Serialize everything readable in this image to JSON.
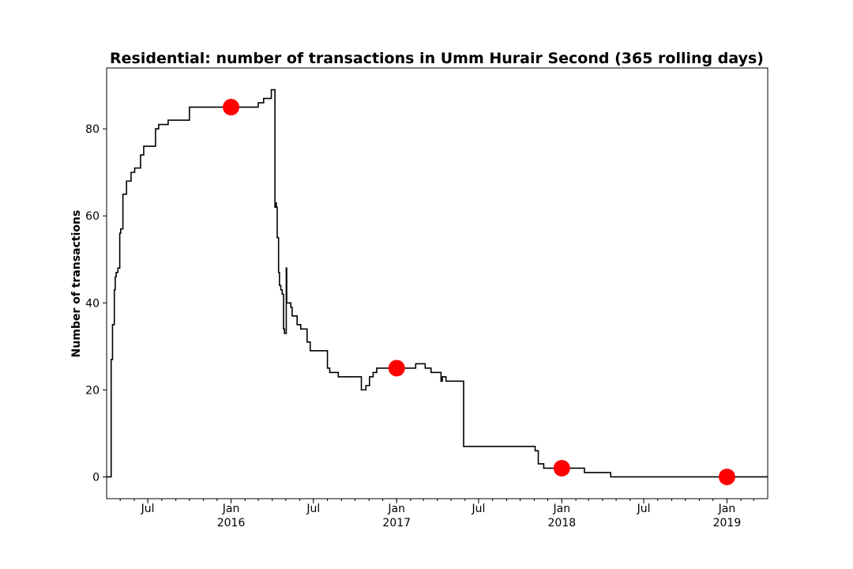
{
  "chart_data": {
    "type": "line",
    "title": "Residential: number of transactions in Umm Hurair Second (365 rolling days)",
    "xlabel": "",
    "ylabel": "Number of transactions",
    "xlim": [
      "2015-04-01",
      "2019-04-01"
    ],
    "ylim": [
      -5,
      94
    ],
    "grid": false,
    "y_ticks": [
      0,
      20,
      40,
      60,
      80
    ],
    "x_ticks": [
      {
        "date": "2015-07-01",
        "label": "Jul",
        "year": ""
      },
      {
        "date": "2016-01-01",
        "label": "Jan",
        "year": "2016"
      },
      {
        "date": "2016-07-01",
        "label": "Jul",
        "year": ""
      },
      {
        "date": "2017-01-01",
        "label": "Jan",
        "year": "2017"
      },
      {
        "date": "2017-07-01",
        "label": "Jul",
        "year": ""
      },
      {
        "date": "2018-01-01",
        "label": "Jan",
        "year": "2018"
      },
      {
        "date": "2018-07-01",
        "label": "Jul",
        "year": ""
      },
      {
        "date": "2019-01-01",
        "label": "Jan",
        "year": "2019"
      }
    ],
    "series": [
      {
        "color": "#000000",
        "step": true,
        "points": [
          [
            "2015-04-01",
            0
          ],
          [
            "2015-04-08",
            0
          ],
          [
            "2015-04-11",
            27
          ],
          [
            "2015-04-14",
            35
          ],
          [
            "2015-04-18",
            43
          ],
          [
            "2015-04-20",
            46
          ],
          [
            "2015-04-22",
            47
          ],
          [
            "2015-04-26",
            48
          ],
          [
            "2015-04-30",
            56
          ],
          [
            "2015-05-02",
            57
          ],
          [
            "2015-05-07",
            65
          ],
          [
            "2015-05-15",
            68
          ],
          [
            "2015-05-25",
            70
          ],
          [
            "2015-06-02",
            71
          ],
          [
            "2015-06-15",
            74
          ],
          [
            "2015-06-22",
            76
          ],
          [
            "2015-07-18",
            80
          ],
          [
            "2015-07-25",
            81
          ],
          [
            "2015-08-15",
            82
          ],
          [
            "2015-10-01",
            85
          ],
          [
            "2016-03-01",
            86
          ],
          [
            "2016-03-13",
            87
          ],
          [
            "2016-03-30",
            89
          ],
          [
            "2016-04-06",
            89
          ],
          [
            "2016-04-07",
            62
          ],
          [
            "2016-04-09",
            63
          ],
          [
            "2016-04-10",
            62
          ],
          [
            "2016-04-12",
            55
          ],
          [
            "2016-04-15",
            47
          ],
          [
            "2016-04-17",
            44
          ],
          [
            "2016-04-20",
            43
          ],
          [
            "2016-04-23",
            42
          ],
          [
            "2016-04-26",
            34
          ],
          [
            "2016-04-28",
            33
          ],
          [
            "2016-05-01",
            33
          ],
          [
            "2016-05-02",
            48
          ],
          [
            "2016-05-03",
            40
          ],
          [
            "2016-05-10",
            40
          ],
          [
            "2016-05-12",
            39
          ],
          [
            "2016-05-15",
            37
          ],
          [
            "2016-05-26",
            35
          ],
          [
            "2016-06-03",
            34
          ],
          [
            "2016-06-17",
            31
          ],
          [
            "2016-06-24",
            29
          ],
          [
            "2016-08-01",
            25
          ],
          [
            "2016-08-06",
            24
          ],
          [
            "2016-08-25",
            23
          ],
          [
            "2016-10-15",
            20
          ],
          [
            "2016-10-25",
            21
          ],
          [
            "2016-11-02",
            23
          ],
          [
            "2016-11-10",
            24
          ],
          [
            "2016-11-18",
            25
          ],
          [
            "2017-02-12",
            26
          ],
          [
            "2017-03-05",
            25
          ],
          [
            "2017-03-18",
            24
          ],
          [
            "2017-04-09",
            22
          ],
          [
            "2017-04-12",
            23
          ],
          [
            "2017-04-20",
            22
          ],
          [
            "2017-05-29",
            7
          ],
          [
            "2017-11-03",
            6
          ],
          [
            "2017-11-10",
            3
          ],
          [
            "2017-11-22",
            2
          ],
          [
            "2018-02-20",
            1
          ],
          [
            "2018-04-19",
            0
          ],
          [
            "2019-04-01",
            0
          ]
        ]
      }
    ],
    "highlight_points": [
      {
        "x": "2016-01-01",
        "y": 85,
        "color": "#ff0000"
      },
      {
        "x": "2017-01-01",
        "y": 25,
        "color": "#ff0000"
      },
      {
        "x": "2018-01-01",
        "y": 2,
        "color": "#ff0000"
      },
      {
        "x": "2019-01-01",
        "y": 0,
        "color": "#ff0000"
      }
    ]
  }
}
